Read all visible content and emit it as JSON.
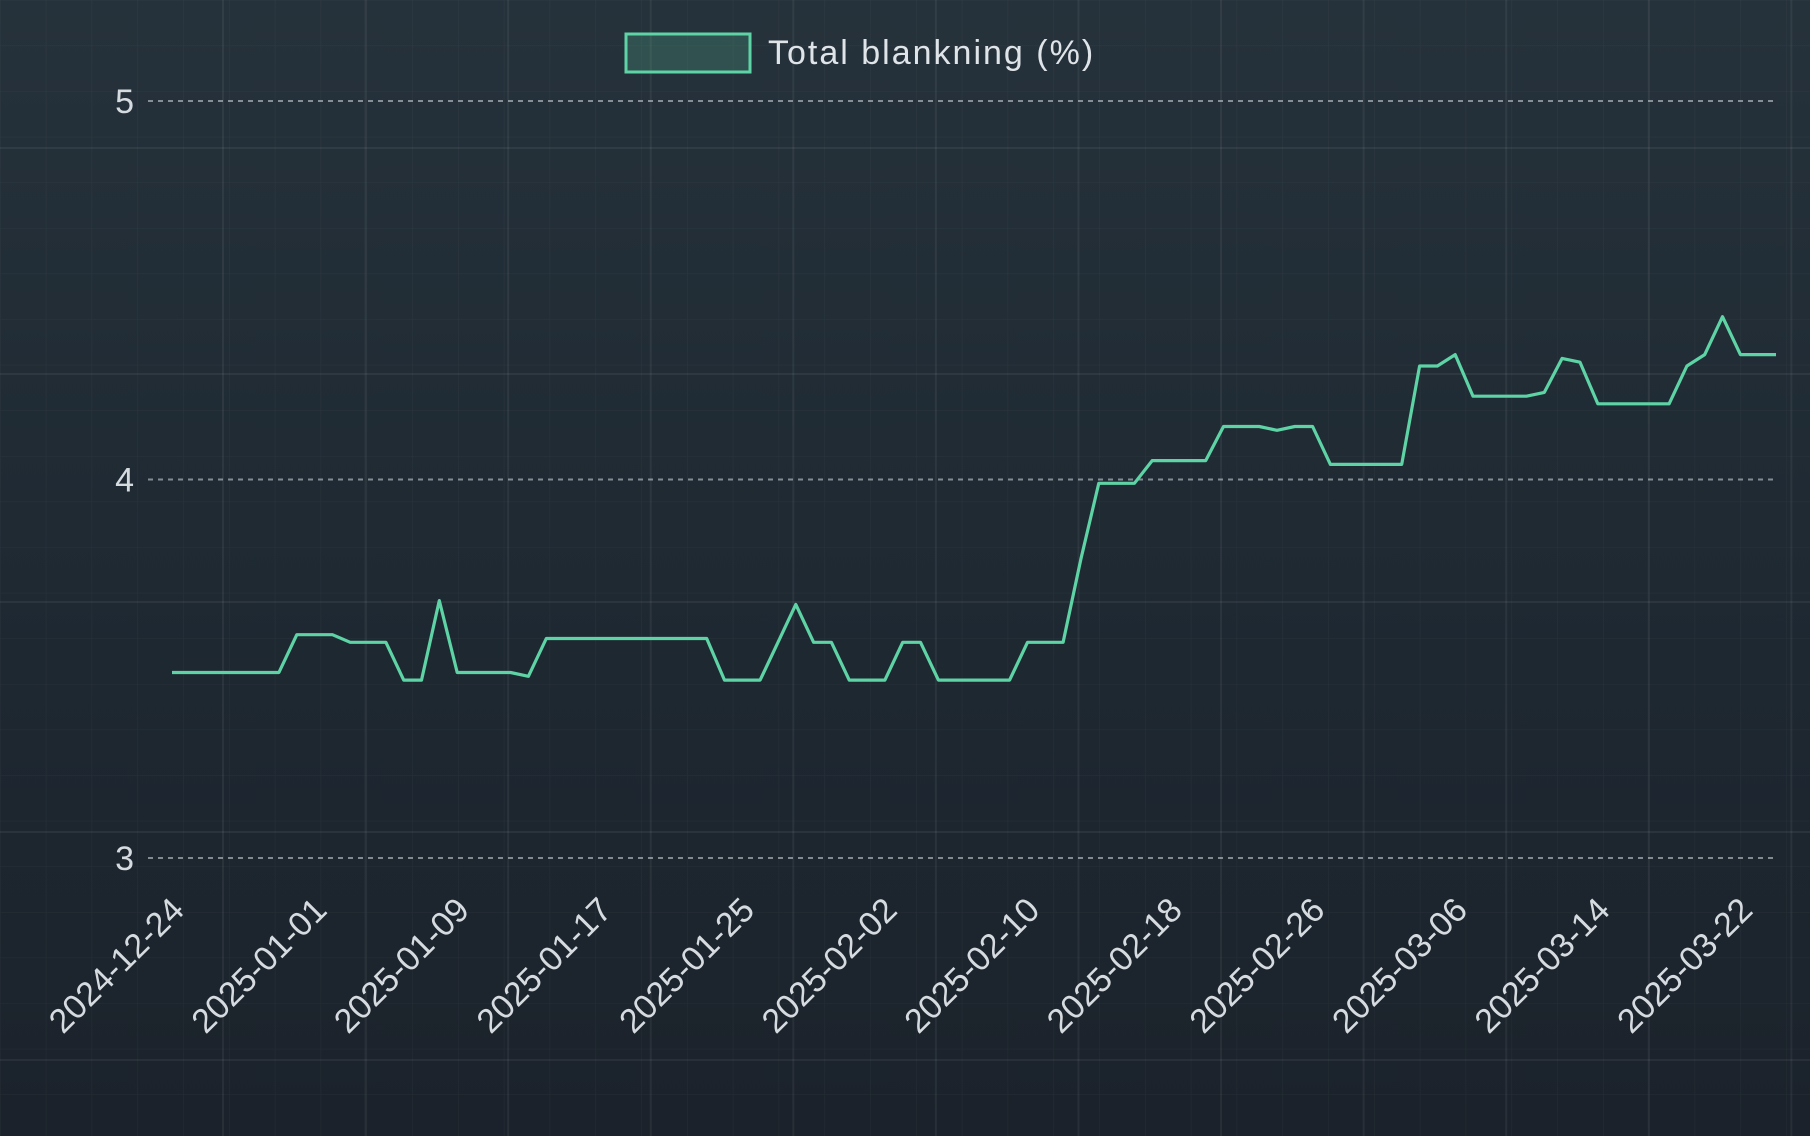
{
  "chart_data": {
    "type": "line",
    "ylim": [
      3,
      5
    ],
    "y_ticks": [
      "3",
      "4",
      "5"
    ],
    "x_tick_labels": [
      "2024-12-24",
      "2025-01-01",
      "2025-01-09",
      "2025-01-17",
      "2025-01-25",
      "2025-02-02",
      "2025-02-10",
      "2025-02-18",
      "2025-02-26",
      "2025-03-06",
      "2025-03-14",
      "2025-03-22"
    ],
    "grid": true,
    "legend_position": "top-center",
    "series": [
      {
        "name": "Total blankning (%)",
        "color": "#5ed3a5",
        "x": [
          "2024-12-24",
          "2024-12-25",
          "2024-12-26",
          "2024-12-27",
          "2024-12-28",
          "2024-12-29",
          "2024-12-30",
          "2024-12-31",
          "2025-01-01",
          "2025-01-02",
          "2025-01-03",
          "2025-01-04",
          "2025-01-05",
          "2025-01-06",
          "2025-01-07",
          "2025-01-08",
          "2025-01-09",
          "2025-01-10",
          "2025-01-11",
          "2025-01-12",
          "2025-01-13",
          "2025-01-14",
          "2025-01-15",
          "2025-01-16",
          "2025-01-17",
          "2025-01-18",
          "2025-01-19",
          "2025-01-20",
          "2025-01-21",
          "2025-01-22",
          "2025-01-23",
          "2025-01-24",
          "2025-01-25",
          "2025-01-26",
          "2025-01-27",
          "2025-01-28",
          "2025-01-29",
          "2025-01-30",
          "2025-01-31",
          "2025-02-01",
          "2025-02-02",
          "2025-02-03",
          "2025-02-04",
          "2025-02-05",
          "2025-02-06",
          "2025-02-07",
          "2025-02-08",
          "2025-02-09",
          "2025-02-10",
          "2025-02-11",
          "2025-02-12",
          "2025-02-13",
          "2025-02-14",
          "2025-02-15",
          "2025-02-16",
          "2025-02-17",
          "2025-02-18",
          "2025-02-19",
          "2025-02-20",
          "2025-02-21",
          "2025-02-22",
          "2025-02-23",
          "2025-02-24",
          "2025-02-25",
          "2025-02-26",
          "2025-02-27",
          "2025-02-28",
          "2025-03-01",
          "2025-03-02",
          "2025-03-03",
          "2025-03-04",
          "2025-03-05",
          "2025-03-06",
          "2025-03-07",
          "2025-03-08",
          "2025-03-09",
          "2025-03-10",
          "2025-03-11",
          "2025-03-12",
          "2025-03-13",
          "2025-03-14",
          "2025-03-15",
          "2025-03-16",
          "2025-03-17",
          "2025-03-18",
          "2025-03-19",
          "2025-03-20",
          "2025-03-21",
          "2025-03-22",
          "2025-03-23",
          "2025-03-24"
        ],
        "values": [
          3.49,
          3.49,
          3.49,
          3.49,
          3.49,
          3.49,
          3.49,
          3.59,
          3.59,
          3.59,
          3.57,
          3.57,
          3.57,
          3.47,
          3.47,
          3.68,
          3.49,
          3.49,
          3.49,
          3.49,
          3.48,
          3.58,
          3.58,
          3.58,
          3.58,
          3.58,
          3.58,
          3.58,
          3.58,
          3.58,
          3.58,
          3.47,
          3.47,
          3.47,
          3.57,
          3.67,
          3.57,
          3.57,
          3.47,
          3.47,
          3.47,
          3.57,
          3.57,
          3.47,
          3.47,
          3.47,
          3.47,
          3.47,
          3.57,
          3.57,
          3.57,
          3.79,
          3.99,
          3.99,
          3.99,
          4.05,
          4.05,
          4.05,
          4.05,
          4.14,
          4.14,
          4.14,
          4.13,
          4.14,
          4.14,
          4.04,
          4.04,
          4.04,
          4.04,
          4.04,
          4.3,
          4.3,
          4.33,
          4.22,
          4.22,
          4.22,
          4.22,
          4.23,
          4.32,
          4.31,
          4.2,
          4.2,
          4.2,
          4.2,
          4.2,
          4.3,
          4.33,
          4.43,
          4.33,
          4.33,
          4.33
        ]
      }
    ]
  }
}
